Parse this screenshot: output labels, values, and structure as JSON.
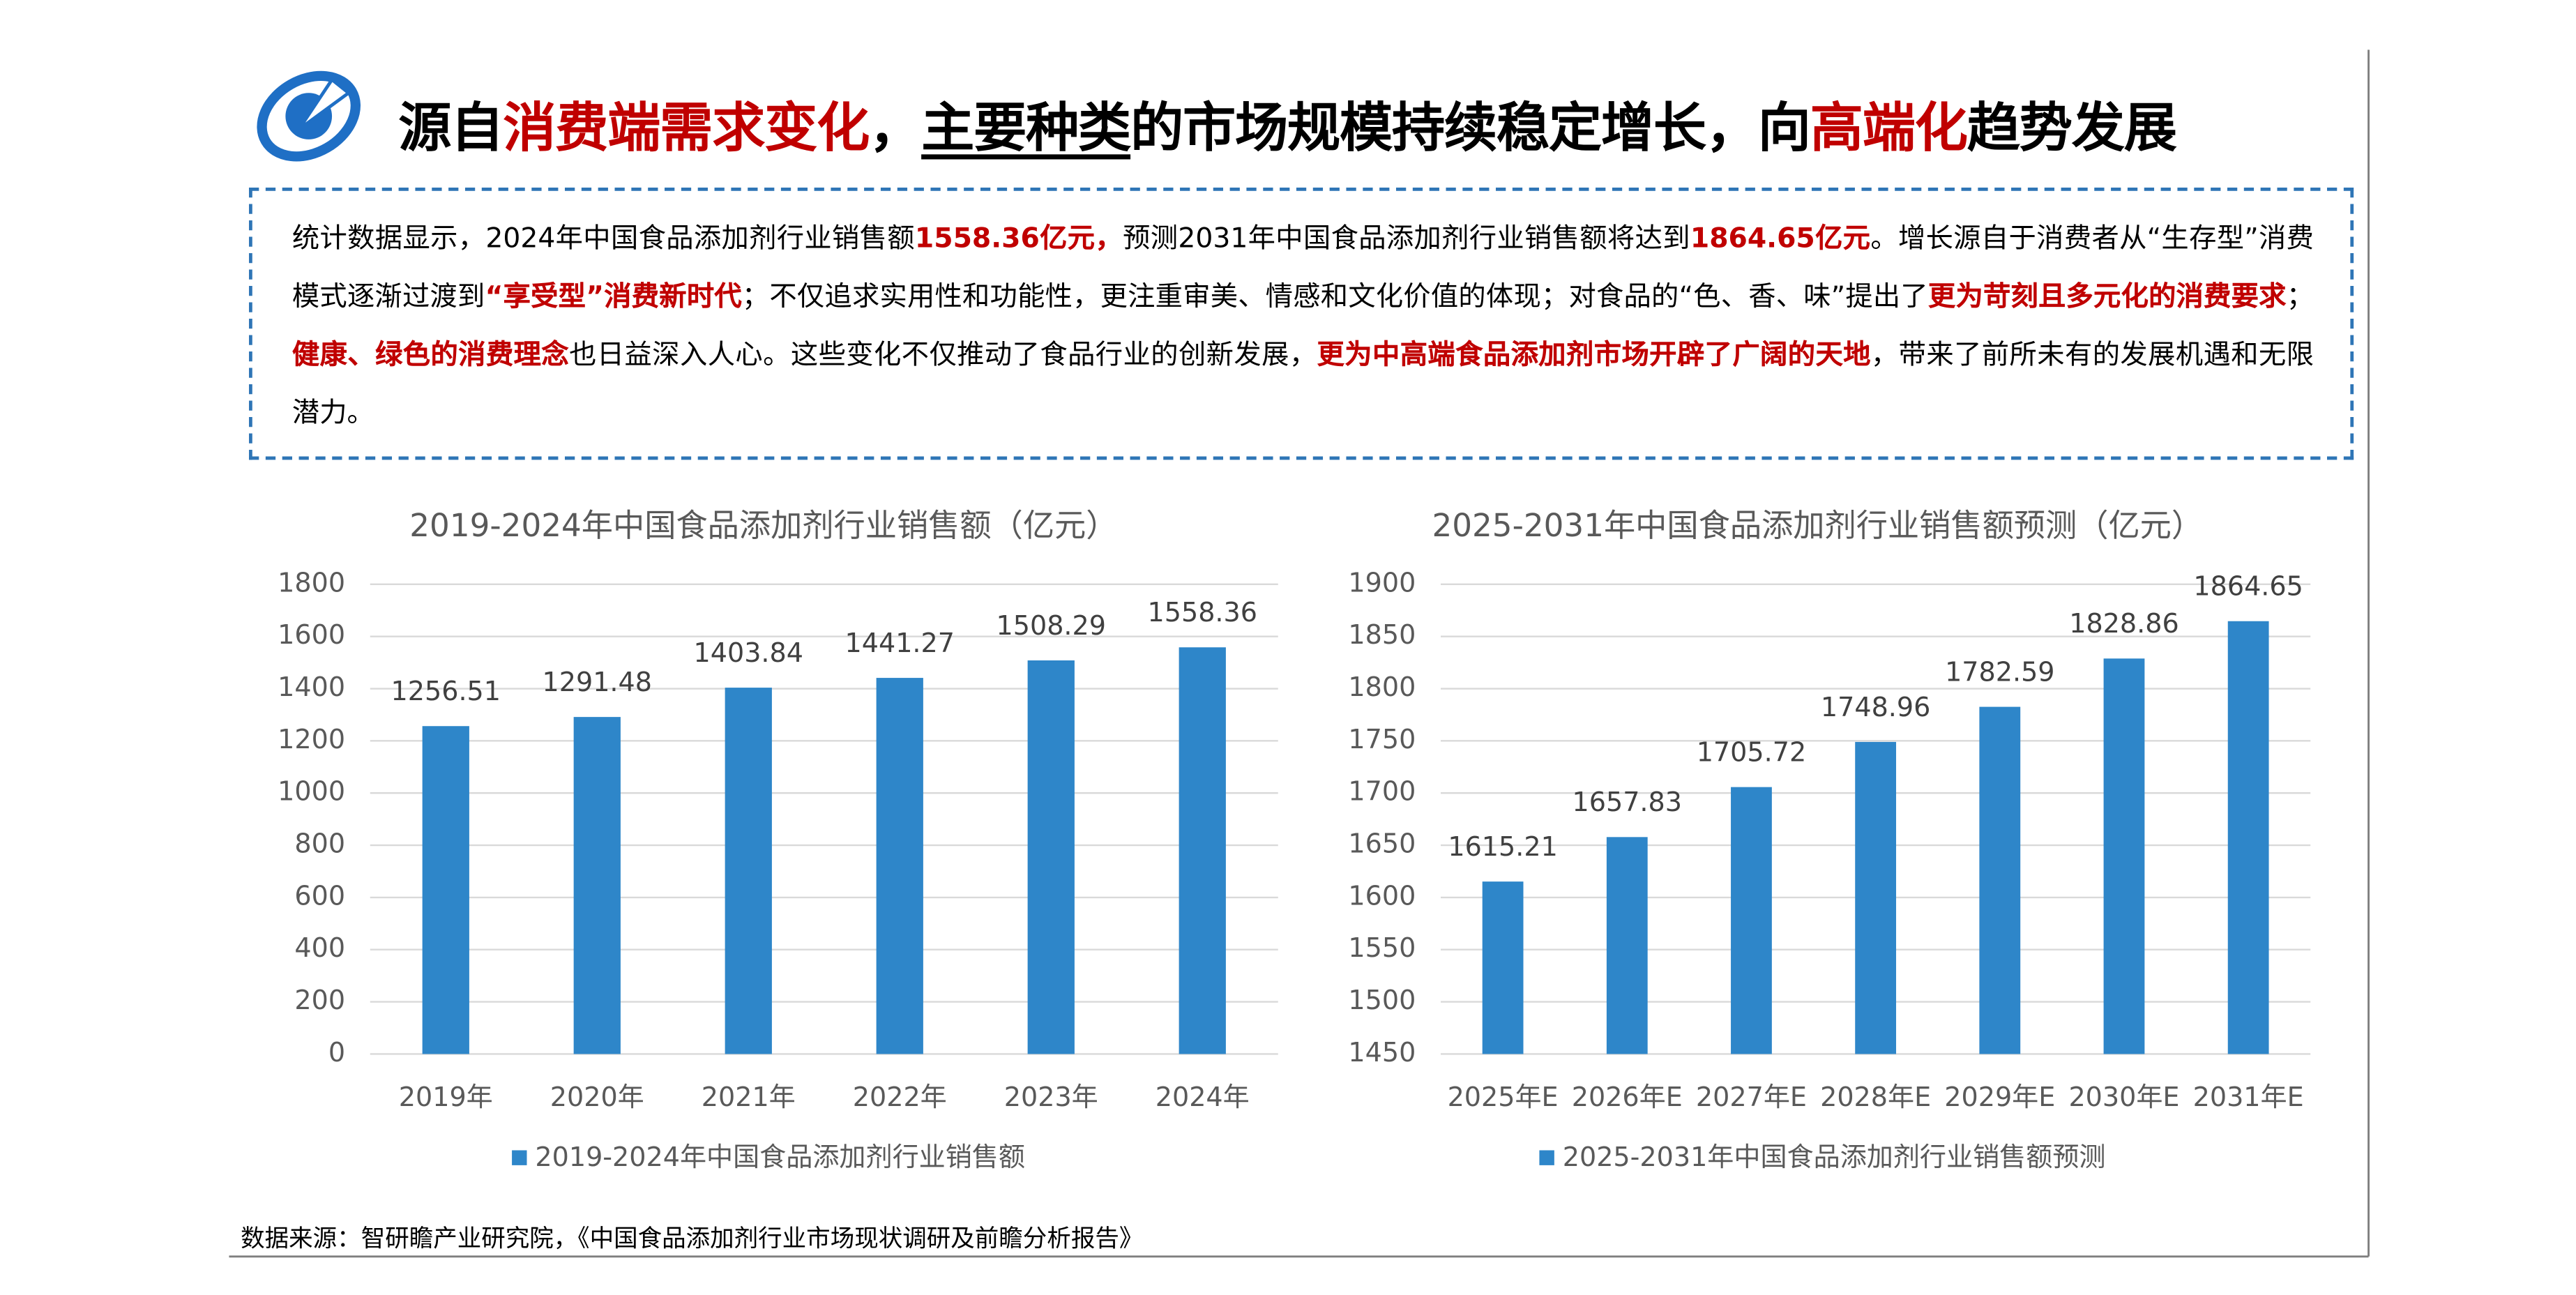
{
  "header": {
    "title_segments": [
      {
        "text": "源自",
        "style": "normal"
      },
      {
        "text": "消费端需求变化",
        "style": "red"
      },
      {
        "text": "，",
        "style": "normal"
      },
      {
        "text": "主要种类",
        "style": "underline"
      },
      {
        "text": "的市场规模持续稳定增长，向",
        "style": "normal"
      },
      {
        "text": "高端化",
        "style": "red"
      },
      {
        "text": "趋势发展",
        "style": "normal"
      }
    ]
  },
  "paragraph": [
    {
      "text": "统计数据显示，2024年中国食品添加剂行业销售额",
      "style": "normal"
    },
    {
      "text": "1558.36亿元，",
      "style": "red"
    },
    {
      "text": "预测2031年中国食品添加剂行业销售额将达到",
      "style": "normal"
    },
    {
      "text": "1864.65亿元",
      "style": "red"
    },
    {
      "text": "。增长源自于消费者从“生存型”消费模式逐渐过渡到",
      "style": "normal"
    },
    {
      "text": "“享受型”消费新时代",
      "style": "red"
    },
    {
      "text": "；不仅追求实用性和功能性，更注重审美、情感和文化价值的体现；对食品的“色、香、味”提出了",
      "style": "normal"
    },
    {
      "text": "更为苛刻且多元化的消费要求",
      "style": "red"
    },
    {
      "text": "；",
      "style": "normal"
    },
    {
      "text": "健康、绿色的消费理念",
      "style": "red"
    },
    {
      "text": "也日益深入人心。这些变化不仅推动了食品行业的创新发展，",
      "style": "normal"
    },
    {
      "text": "更为中高端食品添加剂市场开辟了广阔的天地",
      "style": "red"
    },
    {
      "text": "，带来了前所未有的发展机遇和无限潜力。",
      "style": "normal"
    }
  ],
  "chart_data": [
    {
      "type": "bar",
      "title": "2019-2024年中国食品添加剂行业销售额（亿元）",
      "categories": [
        "2019年",
        "2020年",
        "2021年",
        "2022年",
        "2023年",
        "2024年"
      ],
      "series": [
        {
          "name": "2019-2024年中国食品添加剂行业销售额",
          "color": "#2e86c9",
          "values": [
            1256.51,
            1291.48,
            1403.84,
            1441.27,
            1508.29,
            1558.36
          ]
        }
      ],
      "ylim": [
        0,
        1800
      ],
      "yticks": [
        0,
        200,
        400,
        600,
        800,
        1000,
        1200,
        1400,
        1600,
        1800
      ],
      "grid": true
    },
    {
      "type": "bar",
      "title": "2025-2031年中国食品添加剂行业销售额预测（亿元）",
      "categories": [
        "2025年E",
        "2026年E",
        "2027年E",
        "2028年E",
        "2029年E",
        "2030年E",
        "2031年E"
      ],
      "series": [
        {
          "name": "2025-2031年中国食品添加剂行业销售额预测",
          "color": "#2e86c9",
          "values": [
            1615.21,
            1657.83,
            1705.72,
            1748.96,
            1782.59,
            1828.86,
            1864.65
          ]
        }
      ],
      "ylim": [
        1450,
        1900
      ],
      "yticks": [
        1450,
        1500,
        1550,
        1600,
        1650,
        1700,
        1750,
        1800,
        1850,
        1900
      ],
      "grid": true
    }
  ],
  "source": "数据来源：智研瞻产业研究院，《中国食品添加剂行业市场现状调研及前瞻分析报告》"
}
